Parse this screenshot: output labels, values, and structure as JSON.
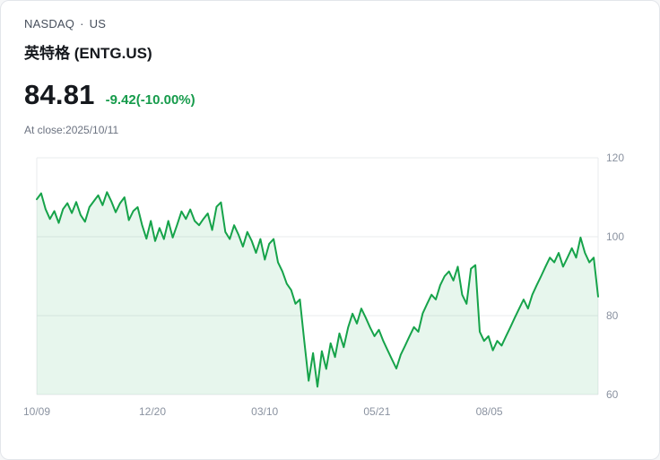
{
  "header": {
    "exchange": "NASDAQ",
    "separator": "·",
    "market": "US",
    "name": "英特格 (ENTG.US)",
    "price": "84.81",
    "change": "-9.42(-10.00%)",
    "as_of": "At close:2025/10/11"
  },
  "colors": {
    "change_text": "#169b4b",
    "grid_line": "#e9ebee",
    "axis_text": "#8a92a0"
  },
  "chart_data": {
    "type": "line",
    "title": "",
    "xlabel": "",
    "ylabel": "",
    "ylim": [
      60,
      120
    ],
    "grid": true,
    "legend": false,
    "line_color": "#16a34a",
    "fill_color": "rgba(22,163,74,0.10)",
    "y_ticks": [
      60,
      80,
      100,
      120
    ],
    "x_ticks": [
      {
        "label": "10/09",
        "pos": 0.0
      },
      {
        "label": "12/20",
        "pos": 0.206
      },
      {
        "label": "03/10",
        "pos": 0.406
      },
      {
        "label": "05/21",
        "pos": 0.606
      },
      {
        "label": "08/05",
        "pos": 0.806
      }
    ],
    "values": [
      109.5,
      111.0,
      107.0,
      104.5,
      106.5,
      103.5,
      107.0,
      108.5,
      106.0,
      108.8,
      105.5,
      103.8,
      107.5,
      109.0,
      110.5,
      108.0,
      111.3,
      109.0,
      106.2,
      108.5,
      110.0,
      104.2,
      106.5,
      107.5,
      103.0,
      99.5,
      104.0,
      98.9,
      102.2,
      99.4,
      104.0,
      99.8,
      103.0,
      106.4,
      104.5,
      106.9,
      104.0,
      102.9,
      104.5,
      105.9,
      101.7,
      107.6,
      108.7,
      101.2,
      99.4,
      102.9,
      100.5,
      97.5,
      101.2,
      99.0,
      95.9,
      99.4,
      94.2,
      98.2,
      99.4,
      93.5,
      91.2,
      88.1,
      86.5,
      83.0,
      84.1,
      73.6,
      63.5,
      70.5,
      62.0,
      71.0,
      66.5,
      73.0,
      69.5,
      75.5,
      72.0,
      77.0,
      80.5,
      78.0,
      81.8,
      79.5,
      77.0,
      74.8,
      76.4,
      73.6,
      71.2,
      68.9,
      66.6,
      70.1,
      72.4,
      74.8,
      77.1,
      75.9,
      80.6,
      83.0,
      85.3,
      84.1,
      87.7,
      90.0,
      91.2,
      88.9,
      92.4,
      85.3,
      83.0,
      91.9,
      92.8,
      75.9,
      73.6,
      74.8,
      71.2,
      73.6,
      72.4,
      74.8,
      77.1,
      79.5,
      81.8,
      84.1,
      81.8,
      85.3,
      87.7,
      90.0,
      92.4,
      94.7,
      93.5,
      95.9,
      92.4,
      94.7,
      97.1,
      94.7,
      99.8,
      95.9,
      93.5,
      94.7,
      84.81
    ]
  }
}
